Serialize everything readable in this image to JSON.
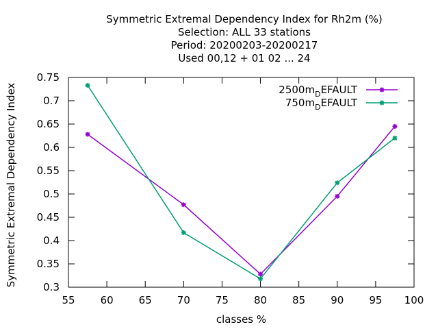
{
  "chart_data": {
    "type": "line",
    "title_lines": [
      "Symmetric Extremal Dependency Index  for Rh2m (%)",
      "Selection: ALL     33 stations",
      "Period: 20200203-20200217",
      "Used  00,12  + 01 02 ... 24"
    ],
    "xlabel": "classes %",
    "ylabel": "Symmetric Extremal Dependency Index",
    "xlim": [
      55,
      100
    ],
    "ylim": [
      0.3,
      0.75
    ],
    "xticks": [
      "55",
      "60",
      "65",
      "70",
      "75",
      "80",
      "85",
      "90",
      "95",
      "100"
    ],
    "yticks": [
      "0.3",
      "0.35",
      "0.4",
      "0.45",
      "0.5",
      "0.55",
      "0.6",
      "0.65",
      "0.7",
      "0.75"
    ],
    "legend_position": "top-right",
    "grid": false,
    "series": [
      {
        "name_main": "2500m",
        "name_sub": "D",
        "name_rest": "EFAULT",
        "color": "#9400d3",
        "x": [
          57.5,
          70,
          80,
          90,
          97.5
        ],
        "y": [
          0.628,
          0.477,
          0.328,
          0.495,
          0.645
        ]
      },
      {
        "name_main": "750m",
        "name_sub": "D",
        "name_rest": "EFAULT",
        "color": "#009e73",
        "x": [
          57.5,
          70,
          80,
          90,
          97.5
        ],
        "y": [
          0.733,
          0.417,
          0.318,
          0.524,
          0.62
        ]
      }
    ]
  }
}
